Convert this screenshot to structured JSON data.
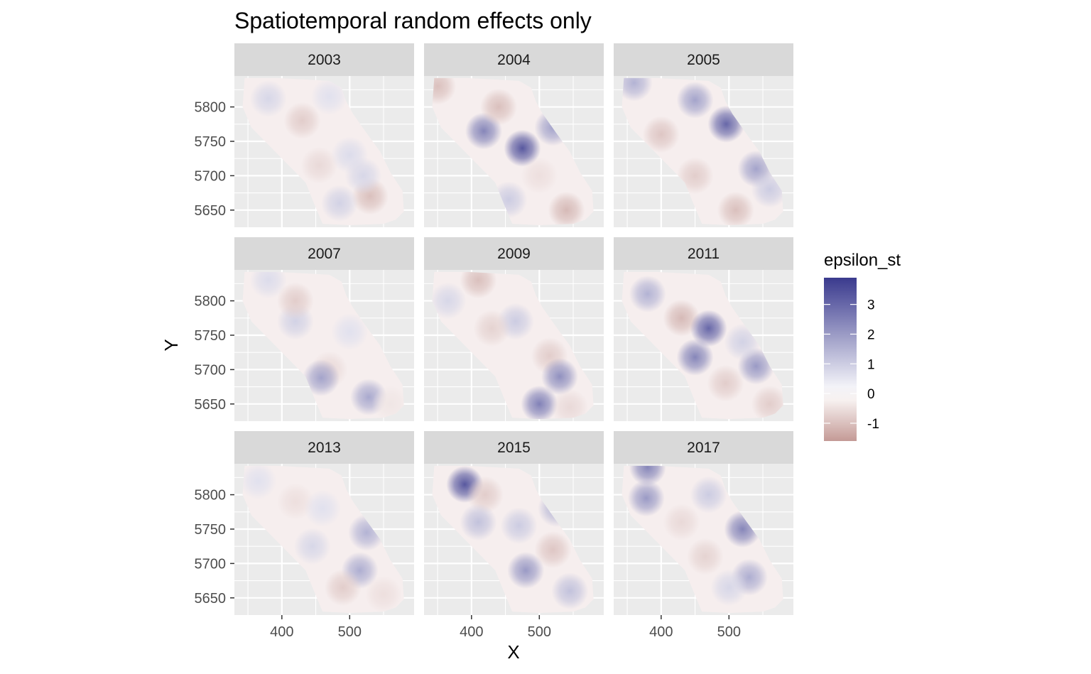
{
  "chart_data": {
    "type": "heatmap",
    "title": "Spatiotemporal random effects only",
    "xlabel": "X",
    "ylabel": "Y",
    "panels": [
      "2003",
      "2004",
      "2005",
      "2007",
      "2009",
      "2011",
      "2013",
      "2015",
      "2017"
    ],
    "x_ticks": [
      400,
      500
    ],
    "y_ticks": [
      5650,
      5700,
      5750,
      5800
    ],
    "xlim": [
      330,
      595
    ],
    "ylim": [
      5625,
      5845
    ],
    "legend": {
      "title": "epsilon_st",
      "ticks": [
        3,
        2,
        1,
        0,
        -1
      ],
      "range": [
        -1.6,
        3.9
      ],
      "colors": {
        "low": "#c49a96",
        "mid": "#ffffff",
        "high": "#3a3a8e"
      },
      "position": "right"
    },
    "region_outline": [
      [
        345,
        5842
      ],
      [
        395,
        5842
      ],
      [
        470,
        5838
      ],
      [
        488,
        5828
      ],
      [
        495,
        5808
      ],
      [
        505,
        5790
      ],
      [
        525,
        5762
      ],
      [
        545,
        5735
      ],
      [
        560,
        5705
      ],
      [
        578,
        5678
      ],
      [
        580,
        5648
      ],
      [
        568,
        5636
      ],
      [
        550,
        5630
      ],
      [
        500,
        5628
      ],
      [
        460,
        5630
      ],
      [
        448,
        5658
      ],
      [
        435,
        5690
      ],
      [
        405,
        5720
      ],
      [
        380,
        5745
      ],
      [
        355,
        5770
      ],
      [
        342,
        5800
      ]
    ],
    "hotspots": [
      {
        "panel": "2003",
        "x": 380,
        "y": 5812,
        "value": 0.8
      },
      {
        "panel": "2003",
        "x": 470,
        "y": 5815,
        "value": 0.6
      },
      {
        "panel": "2003",
        "x": 430,
        "y": 5780,
        "value": -0.8
      },
      {
        "panel": "2003",
        "x": 455,
        "y": 5715,
        "value": -0.6
      },
      {
        "panel": "2003",
        "x": 500,
        "y": 5730,
        "value": 0.7
      },
      {
        "panel": "2003",
        "x": 530,
        "y": 5670,
        "value": -1.0
      },
      {
        "panel": "2003",
        "x": 485,
        "y": 5660,
        "value": 0.9
      },
      {
        "panel": "2003",
        "x": 520,
        "y": 5700,
        "value": 0.8
      },
      {
        "panel": "2004",
        "x": 350,
        "y": 5830,
        "value": -1.0
      },
      {
        "panel": "2004",
        "x": 418,
        "y": 5765,
        "value": 2.4
      },
      {
        "panel": "2004",
        "x": 475,
        "y": 5740,
        "value": 3.3
      },
      {
        "panel": "2004",
        "x": 520,
        "y": 5770,
        "value": 1.8
      },
      {
        "panel": "2004",
        "x": 440,
        "y": 5800,
        "value": -1.0
      },
      {
        "panel": "2004",
        "x": 455,
        "y": 5665,
        "value": 1.0
      },
      {
        "panel": "2004",
        "x": 540,
        "y": 5650,
        "value": -1.1
      },
      {
        "panel": "2004",
        "x": 500,
        "y": 5700,
        "value": -0.5
      },
      {
        "panel": "2005",
        "x": 360,
        "y": 5835,
        "value": 1.5
      },
      {
        "panel": "2005",
        "x": 450,
        "y": 5810,
        "value": 1.8
      },
      {
        "panel": "2005",
        "x": 496,
        "y": 5775,
        "value": 3.0
      },
      {
        "panel": "2005",
        "x": 400,
        "y": 5760,
        "value": -0.9
      },
      {
        "panel": "2005",
        "x": 450,
        "y": 5700,
        "value": -0.8
      },
      {
        "panel": "2005",
        "x": 540,
        "y": 5710,
        "value": 1.8
      },
      {
        "panel": "2005",
        "x": 510,
        "y": 5650,
        "value": -1.0
      },
      {
        "panel": "2005",
        "x": 560,
        "y": 5680,
        "value": 1.0
      },
      {
        "panel": "2007",
        "x": 380,
        "y": 5830,
        "value": 0.7
      },
      {
        "panel": "2007",
        "x": 420,
        "y": 5770,
        "value": 0.9
      },
      {
        "panel": "2007",
        "x": 420,
        "y": 5800,
        "value": -0.8
      },
      {
        "panel": "2007",
        "x": 470,
        "y": 5700,
        "value": -0.6
      },
      {
        "panel": "2007",
        "x": 458,
        "y": 5688,
        "value": 1.8
      },
      {
        "panel": "2007",
        "x": 528,
        "y": 5660,
        "value": 1.7
      },
      {
        "panel": "2007",
        "x": 500,
        "y": 5755,
        "value": 0.6
      },
      {
        "panel": "2007",
        "x": 560,
        "y": 5650,
        "value": -0.4
      },
      {
        "panel": "2009",
        "x": 410,
        "y": 5830,
        "value": -1.0
      },
      {
        "panel": "2009",
        "x": 465,
        "y": 5770,
        "value": 1.0
      },
      {
        "panel": "2009",
        "x": 430,
        "y": 5760,
        "value": -0.7
      },
      {
        "panel": "2009",
        "x": 515,
        "y": 5720,
        "value": -0.8
      },
      {
        "panel": "2009",
        "x": 530,
        "y": 5690,
        "value": 2.2
      },
      {
        "panel": "2009",
        "x": 500,
        "y": 5650,
        "value": 2.5
      },
      {
        "panel": "2009",
        "x": 545,
        "y": 5645,
        "value": -0.6
      },
      {
        "panel": "2009",
        "x": 365,
        "y": 5800,
        "value": 0.8
      },
      {
        "panel": "2011",
        "x": 380,
        "y": 5810,
        "value": 1.5
      },
      {
        "panel": "2011",
        "x": 430,
        "y": 5775,
        "value": -1.1
      },
      {
        "panel": "2011",
        "x": 470,
        "y": 5760,
        "value": 3.0
      },
      {
        "panel": "2011",
        "x": 450,
        "y": 5718,
        "value": 2.4
      },
      {
        "panel": "2011",
        "x": 540,
        "y": 5705,
        "value": 2.0
      },
      {
        "panel": "2011",
        "x": 495,
        "y": 5680,
        "value": -0.8
      },
      {
        "panel": "2011",
        "x": 520,
        "y": 5740,
        "value": 0.9
      },
      {
        "panel": "2011",
        "x": 560,
        "y": 5650,
        "value": -0.8
      },
      {
        "panel": "2013",
        "x": 365,
        "y": 5820,
        "value": 0.6
      },
      {
        "panel": "2013",
        "x": 420,
        "y": 5790,
        "value": -0.5
      },
      {
        "panel": "2013",
        "x": 460,
        "y": 5780,
        "value": 0.6
      },
      {
        "panel": "2013",
        "x": 445,
        "y": 5725,
        "value": 0.8
      },
      {
        "panel": "2013",
        "x": 525,
        "y": 5745,
        "value": 1.5
      },
      {
        "panel": "2013",
        "x": 515,
        "y": 5690,
        "value": 1.6
      },
      {
        "panel": "2013",
        "x": 490,
        "y": 5665,
        "value": -0.8
      },
      {
        "panel": "2013",
        "x": 550,
        "y": 5655,
        "value": -0.5
      },
      {
        "panel": "2015",
        "x": 390,
        "y": 5815,
        "value": 3.3
      },
      {
        "panel": "2015",
        "x": 420,
        "y": 5800,
        "value": -0.8
      },
      {
        "panel": "2015",
        "x": 410,
        "y": 5760,
        "value": 1.2
      },
      {
        "panel": "2015",
        "x": 470,
        "y": 5755,
        "value": 1.0
      },
      {
        "panel": "2015",
        "x": 525,
        "y": 5780,
        "value": 1.4
      },
      {
        "panel": "2015",
        "x": 480,
        "y": 5690,
        "value": 2.0
      },
      {
        "panel": "2015",
        "x": 520,
        "y": 5720,
        "value": -0.9
      },
      {
        "panel": "2015",
        "x": 545,
        "y": 5660,
        "value": 1.2
      },
      {
        "panel": "2017",
        "x": 380,
        "y": 5840,
        "value": 2.4
      },
      {
        "panel": "2017",
        "x": 378,
        "y": 5795,
        "value": 2.0
      },
      {
        "panel": "2017",
        "x": 430,
        "y": 5760,
        "value": -0.6
      },
      {
        "panel": "2017",
        "x": 470,
        "y": 5800,
        "value": 1.0
      },
      {
        "panel": "2017",
        "x": 520,
        "y": 5750,
        "value": 2.4
      },
      {
        "panel": "2017",
        "x": 465,
        "y": 5710,
        "value": -0.7
      },
      {
        "panel": "2017",
        "x": 530,
        "y": 5680,
        "value": 1.6
      },
      {
        "panel": "2017",
        "x": 500,
        "y": 5665,
        "value": 0.8
      }
    ]
  }
}
